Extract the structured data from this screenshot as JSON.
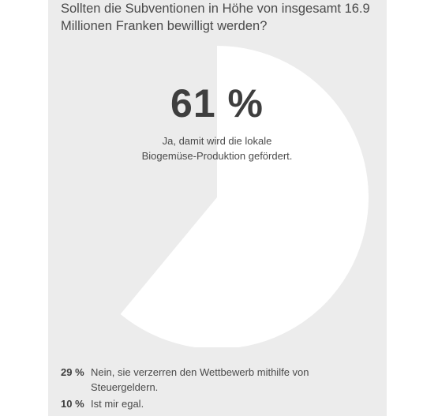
{
  "poll": {
    "question": "Sollten die Subventionen in Höhe von insgesamt 16.9 Millionen Franken bewilligt werden?",
    "highlight": {
      "percent_label": "61 %",
      "text": "Ja, damit wird die lokale Biogemüse-Produktion gefördert."
    },
    "answers": [
      {
        "percent_label": "29 %",
        "text": "Nein, sie verzerren den Wettbewerb mithilfe von Steuergeldern."
      },
      {
        "percent_label": "10 %",
        "text": "Ist mir egal."
      }
    ]
  },
  "chart_data": {
    "type": "pie",
    "values": [
      61,
      29,
      10
    ],
    "unit": "%",
    "colors": {
      "highlight_slice": "#ffffff",
      "background": "#ececec"
    }
  }
}
